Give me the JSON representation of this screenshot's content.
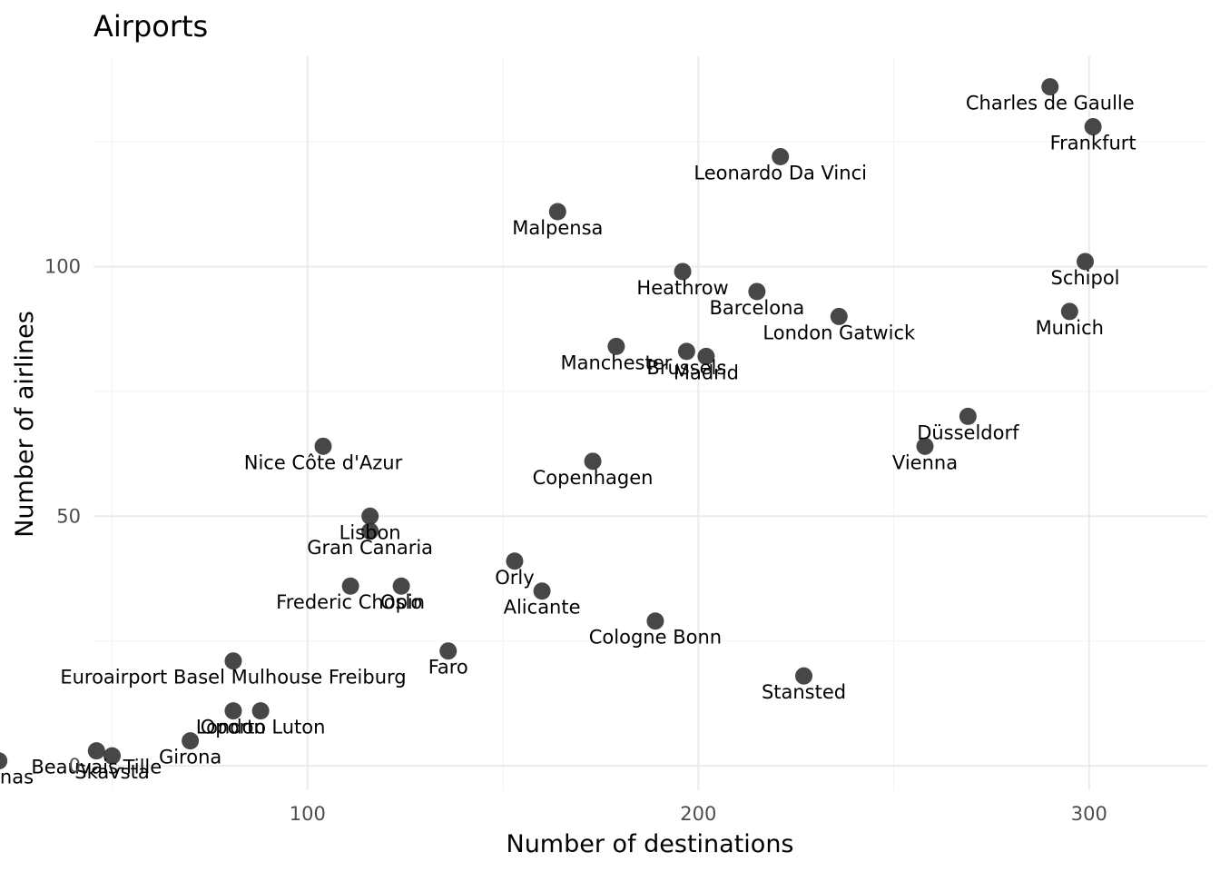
{
  "chart_data": {
    "type": "scatter",
    "title": "Airports",
    "xlabel": "Number of destinations",
    "ylabel": "Number of airlines",
    "xlim": [
      30,
      315
    ],
    "ylim": [
      -5,
      142
    ],
    "x_ticks": [
      100,
      200,
      300
    ],
    "y_ticks": [
      0,
      50,
      100
    ],
    "x_minor": [
      50,
      150,
      250
    ],
    "y_minor": [
      25,
      75,
      125
    ],
    "grid": true,
    "legend": "none",
    "points": [
      {
        "label": "Charles de Gaulle",
        "x": 290,
        "y": 136
      },
      {
        "label": "Frankfurt",
        "x": 301,
        "y": 128
      },
      {
        "label": "Leonardo Da Vinci",
        "x": 221,
        "y": 122
      },
      {
        "label": "Malpensa",
        "x": 164,
        "y": 111
      },
      {
        "label": "Schipol",
        "x": 299,
        "y": 101
      },
      {
        "label": "Heathrow",
        "x": 196,
        "y": 99
      },
      {
        "label": "Barcelona",
        "x": 215,
        "y": 95
      },
      {
        "label": "Munich",
        "x": 295,
        "y": 91
      },
      {
        "label": "London Gatwick",
        "x": 236,
        "y": 90
      },
      {
        "label": "Manchester",
        "x": 179,
        "y": 84
      },
      {
        "label": "Brussels",
        "x": 197,
        "y": 83
      },
      {
        "label": "Madrid",
        "x": 202,
        "y": 82
      },
      {
        "label": "Düsseldorf",
        "x": 269,
        "y": 70
      },
      {
        "label": "Vienna",
        "x": 258,
        "y": 64
      },
      {
        "label": "Nice Côte d'Azur",
        "x": 104,
        "y": 64
      },
      {
        "label": "Copenhagen",
        "x": 173,
        "y": 61
      },
      {
        "label": "Lisbon",
        "x": 116,
        "y": 50
      },
      {
        "label": "Gran Canaria",
        "x": 116,
        "y": 47
      },
      {
        "label": "Orly",
        "x": 153,
        "y": 41
      },
      {
        "label": "Frederic Chopin",
        "x": 111,
        "y": 36
      },
      {
        "label": "Oslo",
        "x": 124,
        "y": 36
      },
      {
        "label": "Alicante",
        "x": 160,
        "y": 35
      },
      {
        "label": "Cologne Bonn",
        "x": 189,
        "y": 29
      },
      {
        "label": "Faro",
        "x": 136,
        "y": 23
      },
      {
        "label": "Euroairport Basel Mulhouse Freiburg",
        "x": 81,
        "y": 21
      },
      {
        "label": "Stansted",
        "x": 227,
        "y": 18
      },
      {
        "label": "London Luton",
        "x": 88,
        "y": 11
      },
      {
        "label": "Oporto",
        "x": 81,
        "y": 11
      },
      {
        "label": "Girona",
        "x": 70,
        "y": 5
      },
      {
        "label": "Beauvais-Tille",
        "x": 46,
        "y": 3
      },
      {
        "label": "Skavsta",
        "x": 50,
        "y": 2
      },
      {
        "label": "Kaunas",
        "x": 21,
        "y": 1
      }
    ]
  }
}
